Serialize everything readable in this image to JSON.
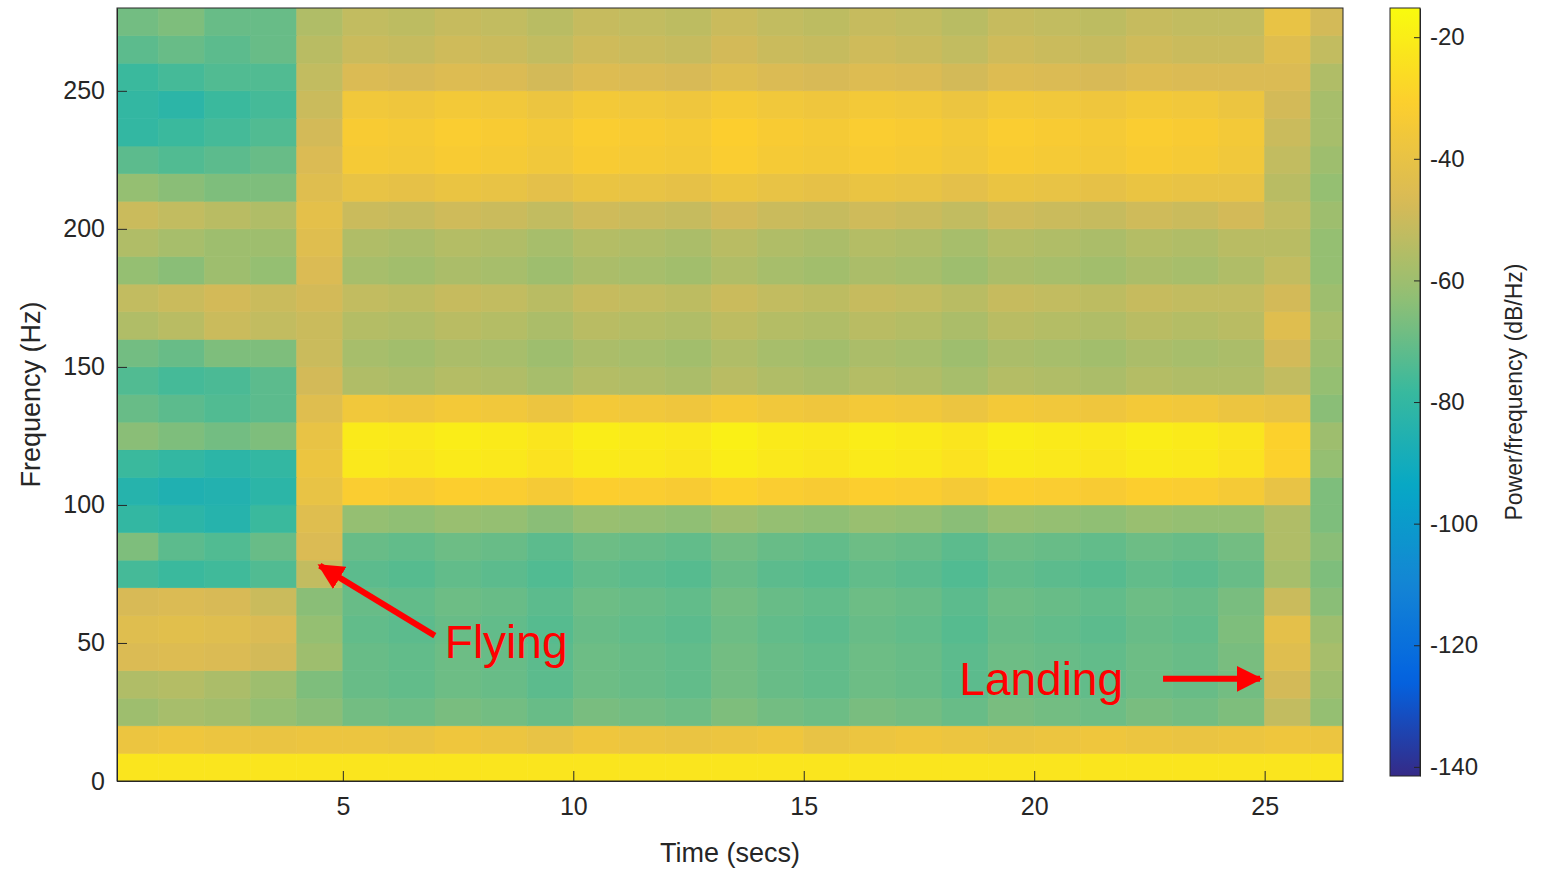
{
  "chart_data": {
    "type": "heatmap",
    "x_label": "Time (secs)",
    "y_label": "Frequency (Hz)",
    "xlim": [
      0.1,
      26.7
    ],
    "ylim": [
      0,
      280
    ],
    "xticks": [
      5,
      10,
      15,
      20,
      25
    ],
    "yticks": [
      0,
      50,
      100,
      150,
      200,
      250
    ],
    "x_bins": [
      0,
      1,
      2,
      3,
      4,
      5,
      6,
      7,
      8,
      9,
      10,
      11,
      12,
      13,
      14,
      15,
      16,
      17,
      18,
      19,
      20,
      21,
      22,
      23,
      24,
      25,
      26,
      27
    ],
    "y_bins": [
      0,
      10,
      20,
      30,
      40,
      50,
      60,
      70,
      80,
      90,
      100,
      110,
      120,
      130,
      140,
      150,
      160,
      170,
      180,
      190,
      200,
      210,
      220,
      230,
      240,
      250,
      260,
      270,
      280
    ],
    "values": [
      [
        -23,
        -23,
        -23,
        -23,
        -23,
        -23,
        -23,
        -23,
        -23,
        -23,
        -23,
        -23,
        -23,
        -23,
        -23,
        -23,
        -23,
        -23,
        -23,
        -23,
        -23,
        -23,
        -23,
        -23,
        -23,
        -23,
        -23
      ],
      [
        -38,
        -37,
        -38,
        -39,
        -38,
        -38,
        -39,
        -37,
        -38,
        -40,
        -37,
        -38,
        -39,
        -38,
        -37,
        -40,
        -38,
        -37,
        -38,
        -39,
        -38,
        -37,
        -38,
        -39,
        -38,
        -37,
        -38
      ],
      [
        -60,
        -58,
        -59,
        -62,
        -64,
        -68,
        -69,
        -67,
        -68,
        -70,
        -67,
        -68,
        -69,
        -66,
        -68,
        -69,
        -67,
        -68,
        -70,
        -67,
        -68,
        -69,
        -67,
        -68,
        -66,
        -52,
        -62
      ],
      [
        -56,
        -55,
        -57,
        -60,
        -66,
        -70,
        -71,
        -69,
        -70,
        -72,
        -69,
        -70,
        -71,
        -68,
        -70,
        -71,
        -69,
        -70,
        -72,
        -69,
        -70,
        -71,
        -69,
        -70,
        -68,
        -48,
        -60
      ],
      [
        -46,
        -45,
        -46,
        -48,
        -60,
        -70,
        -71,
        -69,
        -70,
        -72,
        -69,
        -70,
        -71,
        -68,
        -70,
        -71,
        -69,
        -70,
        -72,
        -69,
        -70,
        -71,
        -69,
        -70,
        -67,
        -44,
        -58
      ],
      [
        -44,
        -43,
        -44,
        -46,
        -62,
        -71,
        -72,
        -70,
        -71,
        -73,
        -70,
        -71,
        -72,
        -69,
        -71,
        -72,
        -70,
        -71,
        -73,
        -70,
        -71,
        -72,
        -70,
        -71,
        -66,
        -42,
        -60
      ],
      [
        -47,
        -46,
        -47,
        -50,
        -64,
        -70,
        -71,
        -69,
        -70,
        -72,
        -69,
        -70,
        -71,
        -68,
        -70,
        -71,
        -69,
        -70,
        -72,
        -69,
        -70,
        -71,
        -69,
        -70,
        -67,
        -50,
        -64
      ],
      [
        -76,
        -78,
        -77,
        -74,
        -52,
        -72,
        -73,
        -71,
        -72,
        -74,
        -71,
        -72,
        -73,
        -70,
        -72,
        -73,
        -71,
        -72,
        -74,
        -71,
        -72,
        -73,
        -71,
        -72,
        -70,
        -58,
        -66
      ],
      [
        -66,
        -72,
        -74,
        -70,
        -46,
        -70,
        -71,
        -69,
        -70,
        -72,
        -69,
        -70,
        -71,
        -68,
        -70,
        -71,
        -69,
        -70,
        -72,
        -69,
        -70,
        -71,
        -69,
        -70,
        -68,
        -56,
        -64
      ],
      [
        -80,
        -82,
        -84,
        -78,
        -44,
        -62,
        -63,
        -61,
        -62,
        -64,
        -61,
        -62,
        -63,
        -60,
        -62,
        -63,
        -61,
        -62,
        -64,
        -61,
        -62,
        -63,
        -61,
        -62,
        -62,
        -56,
        -66
      ],
      [
        -84,
        -86,
        -85,
        -82,
        -40,
        -32,
        -33,
        -31,
        -32,
        -34,
        -31,
        -32,
        -33,
        -30,
        -32,
        -33,
        -31,
        -32,
        -34,
        -31,
        -32,
        -33,
        -31,
        -32,
        -34,
        -40,
        -66
      ],
      [
        -78,
        -80,
        -82,
        -80,
        -38,
        -22,
        -23,
        -21,
        -22,
        -24,
        -21,
        -22,
        -23,
        -20,
        -22,
        -23,
        -21,
        -22,
        -24,
        -21,
        -22,
        -23,
        -21,
        -22,
        -24,
        -30,
        -62
      ],
      [
        -64,
        -66,
        -68,
        -66,
        -40,
        -21,
        -22,
        -20,
        -21,
        -23,
        -20,
        -21,
        -22,
        -19,
        -21,
        -22,
        -20,
        -21,
        -23,
        -20,
        -21,
        -22,
        -20,
        -21,
        -23,
        -30,
        -60
      ],
      [
        -70,
        -72,
        -74,
        -72,
        -44,
        -36,
        -37,
        -35,
        -36,
        -38,
        -35,
        -36,
        -37,
        -34,
        -36,
        -37,
        -35,
        -36,
        -38,
        -35,
        -36,
        -37,
        -35,
        -36,
        -38,
        -40,
        -64
      ],
      [
        -74,
        -76,
        -75,
        -72,
        -48,
        -56,
        -57,
        -55,
        -56,
        -58,
        -55,
        -56,
        -57,
        -54,
        -56,
        -57,
        -55,
        -56,
        -58,
        -55,
        -56,
        -57,
        -55,
        -56,
        -56,
        -52,
        -62
      ],
      [
        -68,
        -70,
        -66,
        -66,
        -50,
        -58,
        -59,
        -57,
        -58,
        -60,
        -57,
        -58,
        -59,
        -56,
        -58,
        -59,
        -57,
        -58,
        -60,
        -57,
        -58,
        -59,
        -57,
        -58,
        -57,
        -48,
        -60
      ],
      [
        -56,
        -54,
        -50,
        -52,
        -50,
        -55,
        -56,
        -54,
        -55,
        -57,
        -54,
        -55,
        -56,
        -53,
        -55,
        -56,
        -54,
        -55,
        -57,
        -54,
        -55,
        -56,
        -54,
        -55,
        -54,
        -44,
        -58
      ],
      [
        -52,
        -50,
        -48,
        -50,
        -48,
        -52,
        -53,
        -51,
        -52,
        -54,
        -51,
        -52,
        -53,
        -50,
        -52,
        -53,
        -51,
        -52,
        -54,
        -51,
        -52,
        -53,
        -51,
        -52,
        -52,
        -48,
        -60
      ],
      [
        -62,
        -64,
        -60,
        -62,
        -46,
        -58,
        -59,
        -57,
        -58,
        -60,
        -57,
        -58,
        -59,
        -56,
        -58,
        -59,
        -57,
        -58,
        -60,
        -57,
        -58,
        -59,
        -57,
        -58,
        -56,
        -52,
        -62
      ],
      [
        -56,
        -58,
        -60,
        -60,
        -44,
        -56,
        -57,
        -55,
        -56,
        -58,
        -55,
        -56,
        -57,
        -54,
        -56,
        -57,
        -55,
        -56,
        -58,
        -55,
        -56,
        -57,
        -55,
        -56,
        -54,
        -54,
        -62
      ],
      [
        -50,
        -52,
        -54,
        -56,
        -42,
        -50,
        -51,
        -49,
        -50,
        -52,
        -49,
        -50,
        -51,
        -48,
        -50,
        -51,
        -49,
        -50,
        -52,
        -49,
        -50,
        -51,
        -49,
        -50,
        -48,
        -52,
        -60
      ],
      [
        -62,
        -64,
        -66,
        -66,
        -44,
        -40,
        -41,
        -39,
        -40,
        -42,
        -39,
        -40,
        -41,
        -38,
        -40,
        -41,
        -39,
        -40,
        -42,
        -39,
        -40,
        -41,
        -39,
        -40,
        -40,
        -54,
        -62
      ],
      [
        -72,
        -74,
        -72,
        -70,
        -46,
        -34,
        -35,
        -33,
        -34,
        -36,
        -33,
        -34,
        -35,
        -32,
        -34,
        -35,
        -33,
        -34,
        -36,
        -33,
        -34,
        -35,
        -33,
        -34,
        -36,
        -52,
        -60
      ],
      [
        -80,
        -78,
        -76,
        -74,
        -48,
        -33,
        -34,
        -32,
        -33,
        -35,
        -32,
        -33,
        -34,
        -31,
        -33,
        -34,
        -32,
        -33,
        -35,
        -32,
        -33,
        -34,
        -32,
        -33,
        -35,
        -50,
        -58
      ],
      [
        -80,
        -82,
        -78,
        -76,
        -50,
        -36,
        -37,
        -35,
        -36,
        -38,
        -35,
        -36,
        -37,
        -34,
        -36,
        -37,
        -35,
        -36,
        -38,
        -35,
        -36,
        -37,
        -35,
        -36,
        -38,
        -48,
        -58
      ],
      [
        -78,
        -76,
        -74,
        -74,
        -52,
        -46,
        -47,
        -45,
        -46,
        -48,
        -45,
        -46,
        -47,
        -44,
        -46,
        -47,
        -45,
        -46,
        -48,
        -45,
        -46,
        -47,
        -45,
        -46,
        -46,
        -46,
        -56
      ],
      [
        -72,
        -70,
        -72,
        -70,
        -54,
        -50,
        -51,
        -49,
        -50,
        -52,
        -49,
        -50,
        -51,
        -48,
        -50,
        -51,
        -49,
        -50,
        -52,
        -49,
        -50,
        -51,
        -49,
        -50,
        -50,
        -44,
        -52
      ],
      [
        -68,
        -66,
        -70,
        -70,
        -56,
        -52,
        -53,
        -51,
        -52,
        -54,
        -51,
        -52,
        -53,
        -50,
        -52,
        -53,
        -51,
        -52,
        -54,
        -51,
        -52,
        -53,
        -51,
        -52,
        -52,
        -40,
        -48
      ]
    ],
    "colorbar": {
      "label": "Power/frequency (dB/Hz)",
      "range": [
        -141.5,
        -15.2
      ],
      "ticks": [
        -20,
        -40,
        -60,
        -80,
        -100,
        -120,
        -140
      ]
    },
    "annotations": [
      {
        "text": "Flying",
        "x": 4.5,
        "y": 78,
        "color": "#ff0000"
      },
      {
        "text": "Landing",
        "x": 24.9,
        "y": 37,
        "color": "#ff0000"
      }
    ]
  }
}
